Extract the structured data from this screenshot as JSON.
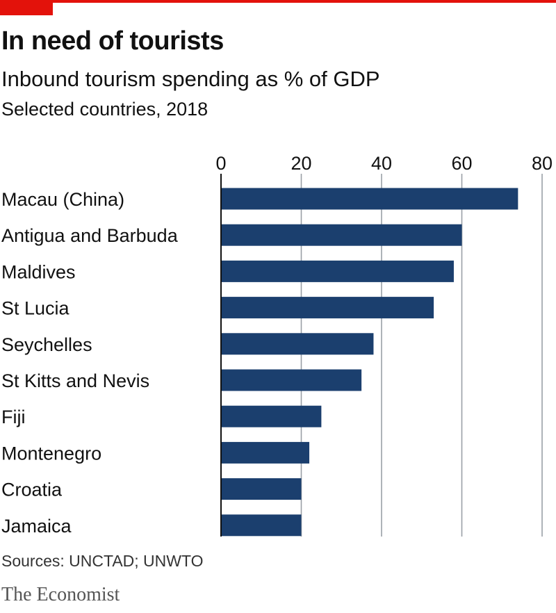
{
  "header": {
    "title": "In need of tourists",
    "subtitle": "Inbound tourism spending as % of GDP",
    "note": "Selected countries, 2018"
  },
  "footer": {
    "source": "Sources: UNCTAD; UNWTO",
    "brand": "The Economist"
  },
  "colors": {
    "accent": "#e3120b",
    "bar": "#1b3f6e",
    "grid": "#9aa0a6",
    "axis": "#111111"
  },
  "chart_data": {
    "type": "bar",
    "orientation": "horizontal",
    "categories": [
      "Macau (China)",
      "Antigua and Barbuda",
      "Maldives",
      "St Lucia",
      "Seychelles",
      "St Kitts and Nevis",
      "Fiji",
      "Montenegro",
      "Croatia",
      "Jamaica"
    ],
    "values": [
      74,
      60,
      58,
      53,
      38,
      35,
      25,
      22,
      20,
      20
    ],
    "xlim": [
      0,
      80
    ],
    "xticks": [
      0,
      20,
      40,
      60,
      80
    ],
    "xaxis_position": "top",
    "grid": true
  }
}
